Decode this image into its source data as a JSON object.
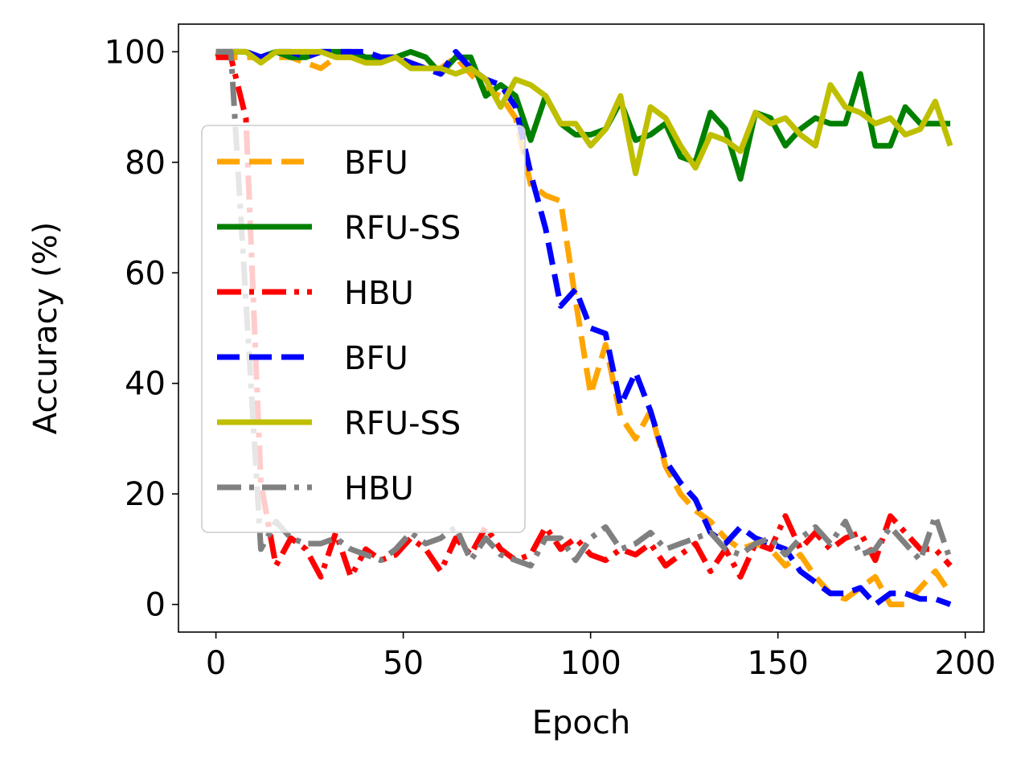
{
  "chart_data": {
    "type": "line",
    "title": "",
    "xlabel": "Epoch",
    "ylabel": "Accuracy (%)",
    "xlim": [
      -10,
      205
    ],
    "ylim": [
      -5,
      105
    ],
    "xticks": [
      0,
      50,
      100,
      150,
      200
    ],
    "yticks": [
      0,
      20,
      40,
      60,
      80,
      100
    ],
    "grid": false,
    "legend_position": "center-left",
    "series": [
      {
        "name": "BFU",
        "color": "#FFA500",
        "dash": "dashed",
        "x": [
          0,
          4,
          8,
          12,
          16,
          20,
          24,
          28,
          32,
          36,
          40,
          44,
          48,
          52,
          56,
          60,
          64,
          68,
          72,
          76,
          80,
          84,
          88,
          92,
          96,
          100,
          104,
          108,
          112,
          116,
          120,
          124,
          128,
          132,
          136,
          140,
          144,
          148,
          152,
          156,
          160,
          164,
          168,
          172,
          176,
          180,
          184,
          188,
          192,
          196
        ],
        "y": [
          100,
          99,
          99,
          99,
          99,
          99,
          98,
          97,
          99,
          99,
          99,
          99,
          99,
          98,
          97,
          97,
          99,
          96,
          93,
          92,
          88,
          76,
          74,
          73,
          55,
          38,
          47,
          34,
          30,
          35,
          25,
          20,
          17,
          15,
          12,
          10,
          11,
          10,
          7,
          9,
          5,
          2,
          1,
          3,
          5,
          0,
          0,
          3,
          6,
          2
        ]
      },
      {
        "name": "RFU-SS",
        "color": "#008000",
        "dash": "solid",
        "x": [
          0,
          4,
          8,
          12,
          16,
          20,
          24,
          28,
          32,
          36,
          40,
          44,
          48,
          52,
          56,
          60,
          64,
          68,
          72,
          76,
          80,
          84,
          88,
          92,
          96,
          100,
          104,
          108,
          112,
          116,
          120,
          124,
          128,
          132,
          136,
          140,
          144,
          148,
          152,
          156,
          160,
          164,
          168,
          172,
          176,
          180,
          184,
          188,
          192,
          196
        ],
        "y": [
          99,
          100,
          100,
          99,
          100,
          99,
          99,
          100,
          100,
          100,
          99,
          99,
          99,
          100,
          99,
          96,
          99,
          99,
          92,
          94,
          92,
          84,
          92,
          87,
          85,
          85,
          86,
          91,
          84,
          85,
          87,
          81,
          80,
          89,
          86,
          77,
          89,
          88,
          83,
          86,
          88,
          87,
          87,
          96,
          83,
          83,
          90,
          87,
          87,
          87
        ]
      },
      {
        "name": "HBU",
        "color": "#FF0000",
        "dash": "dashdot",
        "x": [
          0,
          4,
          8,
          12,
          16,
          20,
          24,
          28,
          32,
          36,
          40,
          44,
          48,
          52,
          56,
          60,
          64,
          68,
          72,
          76,
          80,
          84,
          88,
          92,
          96,
          100,
          104,
          108,
          112,
          116,
          120,
          124,
          128,
          132,
          136,
          140,
          144,
          148,
          152,
          156,
          160,
          164,
          168,
          172,
          176,
          180,
          184,
          188,
          192,
          196
        ],
        "y": [
          99,
          99,
          88,
          22,
          7,
          12,
          10,
          5,
          13,
          5,
          10,
          8,
          9,
          12,
          10,
          6,
          12,
          9,
          14,
          10,
          8,
          9,
          14,
          10,
          12,
          9,
          8,
          10,
          9,
          11,
          7,
          9,
          11,
          6,
          10,
          5,
          11,
          10,
          16,
          10,
          13,
          10,
          12,
          13,
          8,
          16,
          13,
          10,
          10,
          7
        ]
      },
      {
        "name": "BFU",
        "color": "#0000FF",
        "dash": "dashed",
        "x": [
          0,
          4,
          8,
          12,
          16,
          20,
          24,
          28,
          32,
          36,
          40,
          44,
          48,
          52,
          56,
          60,
          64,
          68,
          72,
          76,
          80,
          84,
          88,
          92,
          96,
          100,
          104,
          108,
          112,
          116,
          120,
          124,
          128,
          132,
          136,
          140,
          144,
          148,
          152,
          156,
          160,
          164,
          168,
          172,
          176,
          180,
          184,
          188,
          192,
          196
        ],
        "y": [
          100,
          100,
          100,
          99,
          100,
          100,
          99,
          100,
          100,
          100,
          100,
          99,
          99,
          98,
          97,
          96,
          100,
          97,
          95,
          94,
          90,
          78,
          68,
          54,
          57,
          50,
          49,
          36,
          42,
          35,
          26,
          22,
          19,
          13,
          11,
          14,
          12,
          11,
          10,
          6,
          4,
          2,
          2,
          3,
          0,
          2,
          2,
          1,
          1,
          0
        ]
      },
      {
        "name": "RFU-SS",
        "color": "#BFBF00",
        "dash": "solid",
        "x": [
          0,
          4,
          8,
          12,
          16,
          20,
          24,
          28,
          32,
          36,
          40,
          44,
          48,
          52,
          56,
          60,
          64,
          68,
          72,
          76,
          80,
          84,
          88,
          92,
          96,
          100,
          104,
          108,
          112,
          116,
          120,
          124,
          128,
          132,
          136,
          140,
          144,
          148,
          152,
          156,
          160,
          164,
          168,
          172,
          176,
          180,
          184,
          188,
          192,
          196
        ],
        "y": [
          100,
          100,
          100,
          98,
          100,
          100,
          100,
          100,
          99,
          99,
          98,
          98,
          99,
          97,
          97,
          97,
          96,
          97,
          95,
          90,
          95,
          94,
          92,
          87,
          87,
          83,
          86,
          92,
          78,
          90,
          88,
          83,
          79,
          85,
          84,
          82,
          89,
          87,
          88,
          85,
          83,
          94,
          90,
          89,
          87,
          88,
          85,
          86,
          91,
          83
        ]
      },
      {
        "name": "HBU",
        "color": "#808080",
        "dash": "dashdot",
        "x": [
          0,
          4,
          8,
          12,
          16,
          20,
          24,
          28,
          32,
          36,
          40,
          44,
          48,
          52,
          56,
          60,
          64,
          68,
          72,
          76,
          80,
          84,
          88,
          92,
          96,
          100,
          104,
          108,
          112,
          116,
          120,
          124,
          128,
          132,
          136,
          140,
          144,
          148,
          152,
          156,
          160,
          164,
          168,
          172,
          176,
          180,
          184,
          188,
          192,
          196
        ],
        "y": [
          100,
          100,
          55,
          10,
          15,
          12,
          11,
          11,
          12,
          10,
          9,
          8,
          10,
          13,
          11,
          12,
          14,
          8,
          12,
          9,
          8,
          7,
          12,
          12,
          8,
          12,
          14,
          10,
          11,
          13,
          10,
          11,
          12,
          13,
          10,
          9,
          11,
          12,
          9,
          12,
          14,
          11,
          15,
          9,
          10,
          14,
          11,
          8,
          16,
          8
        ]
      }
    ]
  }
}
